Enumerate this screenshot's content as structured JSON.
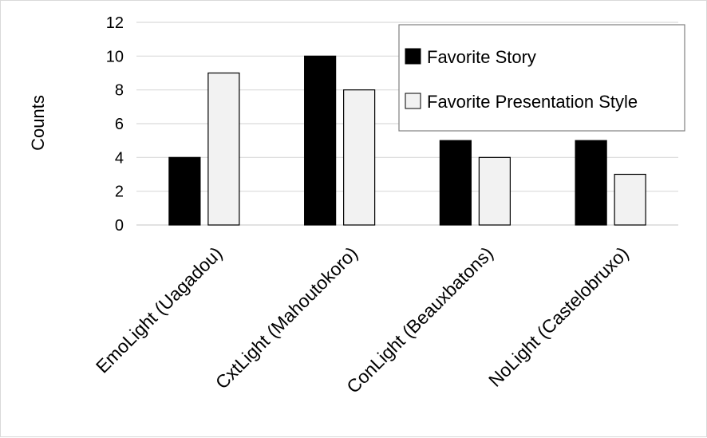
{
  "chart_data": {
    "type": "bar",
    "title": "",
    "xlabel": "",
    "ylabel": "Counts",
    "ylim": [
      0,
      12
    ],
    "yticks": [
      "0",
      "2",
      "4",
      "6",
      "8",
      "10",
      "12"
    ],
    "grid": true,
    "legend_position": "top-right",
    "categories": [
      "EmoLight (Uagadou)",
      "CxtLight (Mahoutokoro)",
      "ConLight (Beauxbatons)",
      "NoLight (Castelobruxo)"
    ],
    "series": [
      {
        "name": "Favorite Story",
        "values": [
          4,
          10,
          5,
          5
        ],
        "color": "#000000"
      },
      {
        "name": "Favorite Presentation Style",
        "values": [
          9,
          8,
          4,
          3
        ],
        "color": "#f2f2f2"
      }
    ]
  }
}
